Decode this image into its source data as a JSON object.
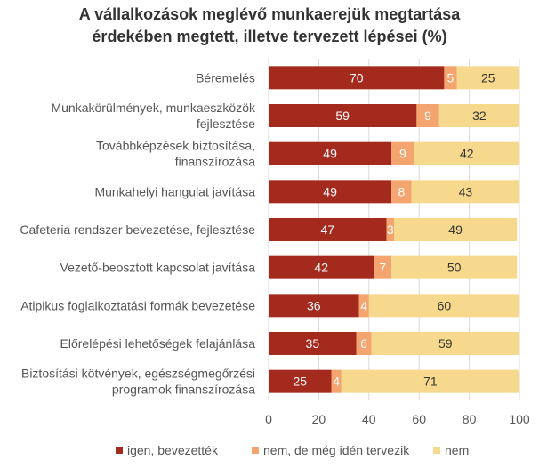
{
  "chart_data": {
    "type": "bar",
    "orientation": "horizontal",
    "stacked": true,
    "title_lines": [
      "A vállalkozások meglévő munkaerejük megtartása",
      "érdekében megtett, illetve tervezett lépései  (%)"
    ],
    "categories": [
      [
        "Béremelés"
      ],
      [
        "Munkakörülmények, munkaeszközök",
        "fejlesztése"
      ],
      [
        "Továbbképzések biztosítása,",
        "finanszírozása"
      ],
      [
        "Munkahelyi hangulat javítása"
      ],
      [
        "Cafeteria rendszer bevezetése, fejlesztése"
      ],
      [
        "Vezető-beosztott kapcsolat javítása"
      ],
      [
        "Atipikus foglalkoztatási formák bevezetése"
      ],
      [
        "Előrelépési lehetőségek felajánlása"
      ],
      [
        "Biztosítási kötvények, egészségmegőrzési",
        "programok finanszírozása"
      ]
    ],
    "series": [
      {
        "name": "igen, bevezették",
        "color": "#A52A1E",
        "values": [
          70,
          59,
          49,
          49,
          47,
          42,
          36,
          35,
          25
        ]
      },
      {
        "name": "nem, de még idén tervezik",
        "color": "#F4A46E",
        "values": [
          5,
          9,
          9,
          8,
          3,
          7,
          4,
          6,
          4
        ]
      },
      {
        "name": "nem",
        "color": "#F7D98E",
        "values": [
          25,
          32,
          42,
          43,
          49,
          50,
          60,
          59,
          71
        ]
      }
    ],
    "label_colors": [
      "#ffffff",
      "#ffffff",
      "#333333"
    ],
    "xlim": [
      0,
      100
    ],
    "xticks": [
      0,
      20,
      40,
      60,
      80,
      100
    ],
    "grid": true,
    "legend_position": "bottom"
  }
}
